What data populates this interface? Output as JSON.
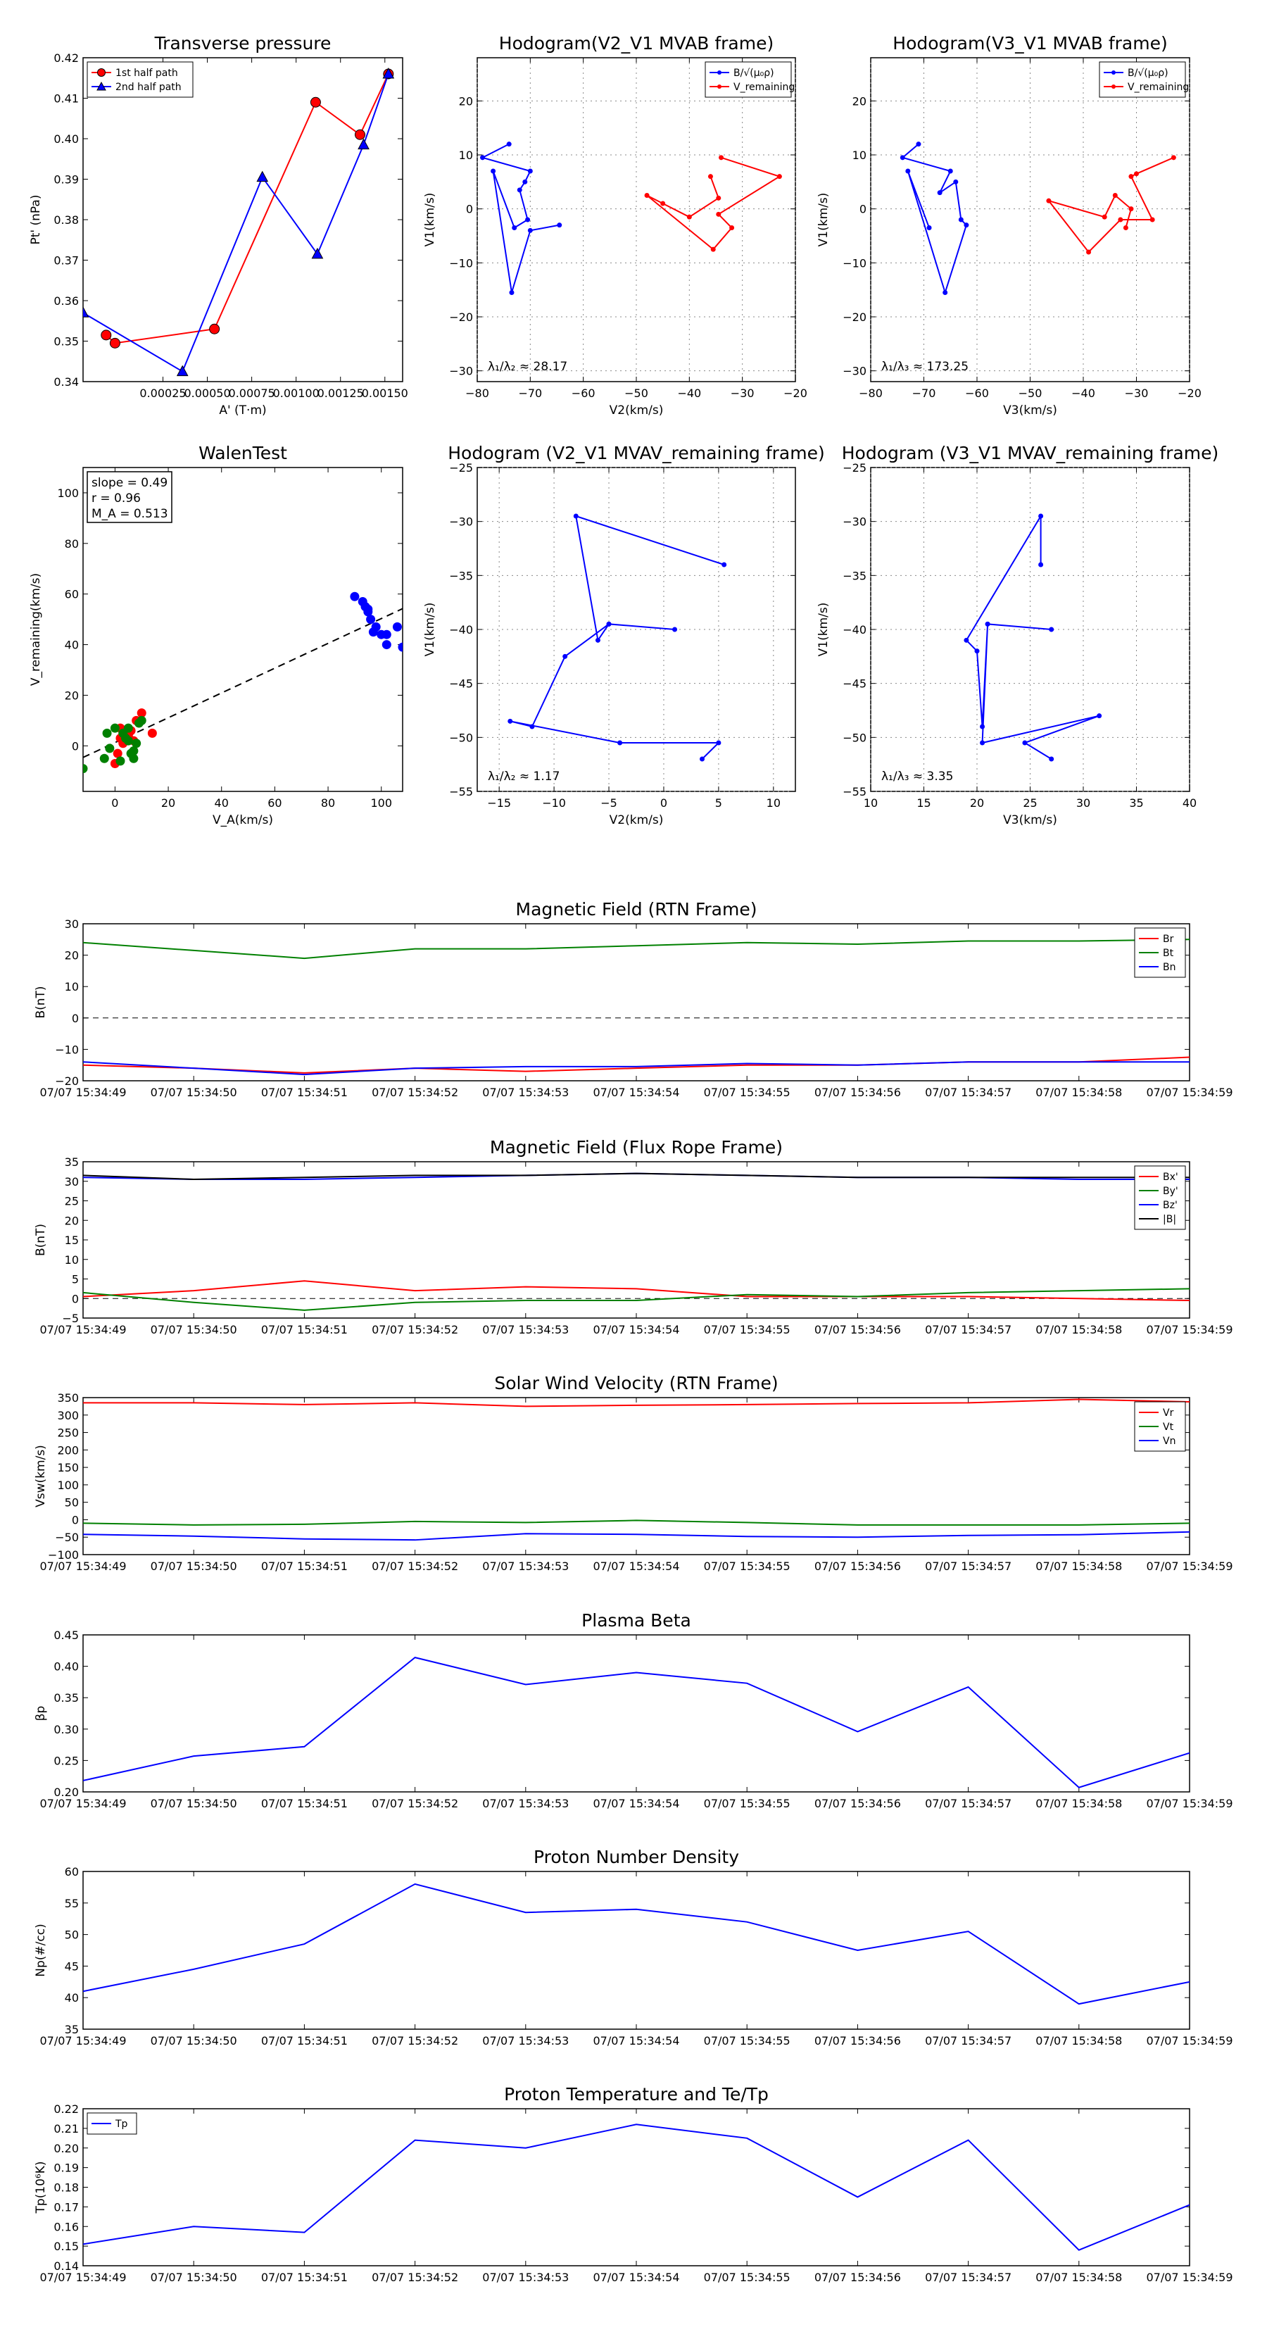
{
  "figure": {
    "colors": {
      "blue": "#0000ff",
      "red": "#ff0000",
      "green": "#008000",
      "black": "#000000"
    }
  },
  "time_labels": [
    "07/07 15:34:49",
    "07/07 15:34:50",
    "07/07 15:34:51",
    "07/07 15:34:52",
    "07/07 15:34:53",
    "07/07 15:34:54",
    "07/07 15:34:55",
    "07/07 15:34:56",
    "07/07 15:34:57",
    "07/07 15:34:58",
    "07/07 15:34:59"
  ],
  "chart_data": [
    {
      "id": "pt",
      "type": "line",
      "title": "Transverse pressure",
      "xlabel": "A' (T·m)",
      "ylabel": "Pt' (nPa)",
      "xlim": [
        -0.0002,
        0.0016
      ],
      "ylim": [
        0.34,
        0.42
      ],
      "xticks": [
        0.00025,
        0.0005,
        0.00075,
        0.001,
        0.00125,
        0.0015
      ],
      "xtick_labels": [
        "0.00025",
        "0.00050",
        "0.00075",
        "0.00100",
        "0.00125",
        "0.00150"
      ],
      "yticks": [
        0.34,
        0.35,
        0.36,
        0.37,
        0.38,
        0.39,
        0.4,
        0.41,
        0.42
      ],
      "ytick_labels": [
        "0.34",
        "0.35",
        "0.36",
        "0.37",
        "0.38",
        "0.39",
        "0.40",
        "0.41",
        "0.42"
      ],
      "legend": {
        "position": "top-left"
      },
      "series": [
        {
          "name": "1st half path",
          "color": "#ff0000",
          "marker": "circle",
          "x": [
            0.00152,
            0.00136,
            0.00111,
            0.00054,
            -2e-05,
            -7e-05
          ],
          "y": [
            0.416,
            0.401,
            0.409,
            0.353,
            0.3495,
            0.3515
          ]
        },
        {
          "name": "2nd half path",
          "color": "#0000ff",
          "marker": "triangle",
          "x": [
            -0.0002,
            0.00036,
            0.00081,
            0.00112,
            0.00138,
            0.00152
          ],
          "y": [
            0.357,
            0.3425,
            0.3905,
            0.3715,
            0.3985,
            0.416
          ]
        }
      ]
    },
    {
      "id": "h1",
      "type": "line",
      "title": "Hodogram(V2_V1 MVAB frame)",
      "xlabel": "V2(km/s)",
      "ylabel": "V1(km/s)",
      "xlim": [
        -80,
        -20
      ],
      "ylim": [
        -32,
        28
      ],
      "xticks": [
        -80,
        -70,
        -60,
        -50,
        -40,
        -30,
        -20
      ],
      "xtick_labels": [
        "−80",
        "−70",
        "−60",
        "−50",
        "−40",
        "−30",
        "−20"
      ],
      "yticks": [
        -30,
        -20,
        -10,
        0,
        10,
        20
      ],
      "ytick_labels": [
        "−30",
        "−20",
        "−10",
        "0",
        "10",
        "20"
      ],
      "annotation": "λ₁/λ₂ ≈ 28.17",
      "legend": {
        "position": "top-right"
      },
      "series": [
        {
          "name": "B/√(μ₀ρ)",
          "color": "#0000ff",
          "x": [
            -74,
            -79,
            -70,
            -71,
            -72,
            -70.5,
            -73,
            -77,
            -73.5,
            -70,
            -64.5
          ],
          "y": [
            12,
            9.5,
            7,
            5,
            3.5,
            -2,
            -3.5,
            7,
            -15.5,
            -4,
            -3
          ]
        },
        {
          "name": "V_remaining",
          "color": "#ff0000",
          "x": [
            -34,
            -23,
            -34.5,
            -32,
            -35.5,
            -48,
            -45,
            -40,
            -34.5,
            -36
          ],
          "y": [
            9.5,
            6,
            -1,
            -3.5,
            -7.5,
            2.5,
            1,
            -1.5,
            2,
            6
          ]
        }
      ]
    },
    {
      "id": "h2",
      "type": "line",
      "title": "Hodogram(V3_V1 MVAB frame)",
      "xlabel": "V3(km/s)",
      "ylabel": "V1(km/s)",
      "xlim": [
        -80,
        -20
      ],
      "ylim": [
        -32,
        28
      ],
      "xticks": [
        -80,
        -70,
        -60,
        -50,
        -40,
        -30,
        -20
      ],
      "xtick_labels": [
        "−80",
        "−70",
        "−60",
        "−50",
        "−40",
        "−30",
        "−20"
      ],
      "yticks": [
        -30,
        -20,
        -10,
        0,
        10,
        20
      ],
      "ytick_labels": [
        "−30",
        "−20",
        "−10",
        "0",
        "10",
        "20"
      ],
      "annotation": "λ₁/λ₃ ≈ 173.25",
      "legend": {
        "position": "top-right"
      },
      "series": [
        {
          "name": "B/√(μ₀ρ)",
          "color": "#0000ff",
          "x": [
            -71,
            -74,
            -65,
            -67,
            -64,
            -63,
            -62,
            -66,
            -73,
            -69
          ],
          "y": [
            12,
            9.5,
            7,
            3,
            5,
            -2,
            -3,
            -15.5,
            7,
            -3.5
          ]
        },
        {
          "name": "V_remaining",
          "color": "#ff0000",
          "x": [
            -23,
            -30,
            -31,
            -27,
            -33,
            -39,
            -46.5,
            -36,
            -34,
            -31,
            -32
          ],
          "y": [
            9.5,
            6.5,
            6,
            -2,
            -2,
            -8,
            1.5,
            -1.5,
            2.5,
            0,
            -3.5
          ]
        }
      ]
    },
    {
      "id": "walen",
      "type": "scatter",
      "title": "WalenTest",
      "xlabel": "V_A(km/s)",
      "ylabel": "V_remaining(km/s)",
      "xlim": [
        -12,
        108
      ],
      "ylim": [
        -18,
        110
      ],
      "xticks": [
        0,
        20,
        40,
        60,
        80,
        100
      ],
      "xtick_labels": [
        "0",
        "20",
        "40",
        "60",
        "80",
        "100"
      ],
      "yticks": [
        0,
        20,
        40,
        60,
        80,
        100
      ],
      "ytick_labels": [
        "0",
        "20",
        "40",
        "60",
        "80",
        "100"
      ],
      "stats": [
        "slope = 0.49",
        "r = 0.96",
        "M_A = 0.513"
      ],
      "fit_line": {
        "slope": 0.49,
        "intercept": 1.3
      },
      "series": [
        {
          "name": "red",
          "color": "#ff0000",
          "x": [
            10,
            8,
            14,
            6,
            4,
            2,
            0,
            3,
            5,
            7,
            2,
            3,
            1
          ],
          "y": [
            13,
            10,
            5,
            6,
            2,
            7,
            -7,
            5,
            4,
            2,
            3,
            1,
            -3
          ]
        },
        {
          "name": "green",
          "color": "#008000",
          "x": [
            -12,
            -4,
            -2,
            5,
            8,
            10,
            3,
            7,
            6,
            4,
            2,
            -3,
            0,
            5,
            9,
            7
          ],
          "y": [
            -9,
            -5,
            -1,
            7,
            1,
            10,
            5,
            -5,
            -3,
            3,
            -6,
            5,
            7,
            2,
            9,
            -2
          ]
        },
        {
          "name": "blue",
          "color": "#0000ff",
          "x": [
            90,
            93,
            94,
            95,
            96,
            95,
            98,
            102,
            102,
            106,
            108,
            97,
            100
          ],
          "y": [
            59,
            57,
            55,
            54,
            50,
            53,
            47,
            44,
            40,
            47,
            39,
            45,
            44
          ]
        }
      ]
    },
    {
      "id": "h3",
      "type": "line",
      "title": "Hodogram (V2_V1 MVAV_remaining frame)",
      "xlabel": "V2(km/s)",
      "ylabel": "V1(km/s)",
      "xlim": [
        -17,
        12
      ],
      "ylim": [
        -55,
        -25
      ],
      "xticks": [
        -15,
        -10,
        -5,
        0,
        5,
        10
      ],
      "xtick_labels": [
        "−15",
        "−10",
        "−5",
        "0",
        "5",
        "10"
      ],
      "yticks": [
        -55,
        -50,
        -45,
        -40,
        -35,
        -30,
        -25
      ],
      "ytick_labels": [
        "−55",
        "−50",
        "−45",
        "−40",
        "−35",
        "−30",
        "−25"
      ],
      "annotation": "λ₁/λ₂ ≈ 1.17",
      "series": [
        {
          "name": "path",
          "color": "#0000ff",
          "x": [
            5.5,
            -8,
            -6,
            -5,
            1,
            -5,
            -9,
            -12,
            -14,
            -4,
            5,
            3.5
          ],
          "y": [
            -34,
            -29.5,
            -41,
            -39.5,
            -40,
            -39.5,
            -42.5,
            -49,
            -48.5,
            -50.5,
            -50.5,
            -52
          ]
        }
      ]
    },
    {
      "id": "h4",
      "type": "line",
      "title": "Hodogram (V3_V1 MVAV_remaining frame)",
      "xlabel": "V3(km/s)",
      "ylabel": "V1(km/s)",
      "xlim": [
        10,
        40
      ],
      "ylim": [
        -55,
        -25
      ],
      "xticks": [
        10,
        15,
        20,
        25,
        30,
        35,
        40
      ],
      "xtick_labels": [
        "10",
        "15",
        "20",
        "25",
        "30",
        "35",
        "40"
      ],
      "yticks": [
        -55,
        -50,
        -45,
        -40,
        -35,
        -30,
        -25
      ],
      "ytick_labels": [
        "−55",
        "−50",
        "−45",
        "−40",
        "−35",
        "−30",
        "−25"
      ],
      "annotation": "λ₁/λ₃ ≈ 3.35",
      "series": [
        {
          "name": "path",
          "color": "#0000ff",
          "x": [
            26,
            26,
            19,
            20,
            20.5,
            21,
            27,
            21,
            20.5,
            31.5,
            24.5,
            27
          ],
          "y": [
            -34,
            -29.5,
            -41,
            -42,
            -49,
            -39.5,
            -40,
            -39.5,
            -50.5,
            -48,
            -50.5,
            -52
          ]
        }
      ]
    },
    {
      "id": "brtn",
      "type": "line",
      "title": "Magnetic Field (RTN Frame)",
      "xlabel": "",
      "ylabel": "B(nT)",
      "ylim": [
        -20,
        30
      ],
      "yticks": [
        -20,
        -10,
        0,
        10,
        20,
        30
      ],
      "ytick_labels": [
        "−20",
        "−10",
        "0",
        "10",
        "20",
        "30"
      ],
      "zero_line": true,
      "legend": {
        "position": "top-right"
      },
      "series": [
        {
          "name": "Br",
          "color": "#ff0000",
          "values": [
            -15,
            -16,
            -17.5,
            -16,
            -17,
            -16,
            -15,
            -15,
            -14,
            -14,
            -12.5
          ]
        },
        {
          "name": "Bt",
          "color": "#008000",
          "values": [
            24,
            21.5,
            19,
            22,
            22,
            23,
            24,
            23.5,
            24.5,
            24.5,
            25
          ]
        },
        {
          "name": "Bn",
          "color": "#0000ff",
          "values": [
            -14,
            -16,
            -18,
            -16,
            -15.5,
            -15.5,
            -14.5,
            -15,
            -14,
            -14,
            -14
          ]
        }
      ]
    },
    {
      "id": "bfr",
      "type": "line",
      "title": "Magnetic Field (Flux Rope Frame)",
      "xlabel": "",
      "ylabel": "B(nT)",
      "ylim": [
        -5,
        35
      ],
      "yticks": [
        -5,
        0,
        5,
        10,
        15,
        20,
        25,
        30,
        35
      ],
      "ytick_labels": [
        "−5",
        "0",
        "5",
        "10",
        "15",
        "20",
        "25",
        "30",
        "35"
      ],
      "zero_line": true,
      "legend": {
        "position": "top-right"
      },
      "series": [
        {
          "name": "Bx'",
          "color": "#ff0000",
          "values": [
            0.5,
            2,
            4.5,
            2,
            3,
            2.5,
            0.5,
            0.5,
            0.5,
            0,
            -0.5
          ]
        },
        {
          "name": "By'",
          "color": "#008000",
          "values": [
            1.5,
            -1,
            -3,
            -1,
            -0.5,
            -0.5,
            1,
            0.5,
            1.5,
            2,
            2.5
          ]
        },
        {
          "name": "Bz'",
          "color": "#0000ff",
          "values": [
            31,
            30.5,
            30.5,
            31,
            31.5,
            32,
            31.5,
            31,
            31,
            30.5,
            30.5
          ]
        },
        {
          "name": "|B|",
          "color": "#000000",
          "values": [
            31.5,
            30.5,
            31,
            31.5,
            31.5,
            32,
            31.5,
            31,
            31,
            31,
            31
          ]
        }
      ]
    },
    {
      "id": "vsw",
      "type": "line",
      "title": "Solar Wind Velocity (RTN Frame)",
      "xlabel": "",
      "ylabel": "Vsw(km/s)",
      "ylim": [
        -100,
        350
      ],
      "yticks": [
        -100,
        -50,
        0,
        50,
        100,
        150,
        200,
        250,
        300,
        350
      ],
      "ytick_labels": [
        "−100",
        "−50",
        "0",
        "50",
        "100",
        "150",
        "200",
        "250",
        "300",
        "350"
      ],
      "legend": {
        "position": "top-right"
      },
      "series": [
        {
          "name": "Vr",
          "color": "#ff0000",
          "values": [
            335,
            335,
            330,
            335,
            325,
            328,
            330,
            333,
            335,
            345,
            338
          ]
        },
        {
          "name": "Vt",
          "color": "#008000",
          "values": [
            -10,
            -15,
            -13,
            -5,
            -8,
            -2,
            -8,
            -15,
            -15,
            -15,
            -10
          ]
        },
        {
          "name": "Vn",
          "color": "#0000ff",
          "values": [
            -42,
            -47,
            -55,
            -58,
            -40,
            -42,
            -48,
            -50,
            -45,
            -43,
            -35
          ]
        }
      ]
    },
    {
      "id": "beta",
      "type": "line",
      "title": "Plasma Beta",
      "xlabel": "",
      "ylabel": "βp",
      "ylim": [
        0.2,
        0.45
      ],
      "yticks": [
        0.2,
        0.25,
        0.3,
        0.35,
        0.4,
        0.45
      ],
      "ytick_labels": [
        "0.20",
        "0.25",
        "0.30",
        "0.35",
        "0.40",
        "0.45"
      ],
      "series": [
        {
          "name": "beta",
          "color": "#0000ff",
          "values": [
            0.218,
            0.257,
            0.272,
            0.414,
            0.371,
            0.39,
            0.373,
            0.296,
            0.367,
            0.207,
            0.262
          ]
        }
      ]
    },
    {
      "id": "np",
      "type": "line",
      "title": "Proton Number Density",
      "xlabel": "",
      "ylabel": "Np(#/cc)",
      "ylim": [
        35,
        60
      ],
      "yticks": [
        35,
        40,
        45,
        50,
        55,
        60
      ],
      "ytick_labels": [
        "35",
        "40",
        "45",
        "50",
        "55",
        "60"
      ],
      "series": [
        {
          "name": "Np",
          "color": "#0000ff",
          "values": [
            41,
            44.5,
            48.5,
            58,
            53.5,
            54,
            52,
            47.5,
            50.5,
            39,
            42.5
          ]
        }
      ]
    },
    {
      "id": "tp",
      "type": "line",
      "title": "Proton Temperature and Te/Tp",
      "xlabel": "",
      "ylabel": "Tp(10⁶K)",
      "ylim": [
        0.14,
        0.22
      ],
      "yticks": [
        0.14,
        0.15,
        0.16,
        0.17,
        0.18,
        0.19,
        0.2,
        0.21,
        0.22
      ],
      "ytick_labels": [
        "0.14",
        "0.15",
        "0.16",
        "0.17",
        "0.18",
        "0.19",
        "0.20",
        "0.21",
        "0.22"
      ],
      "legend": {
        "position": "top-left"
      },
      "series": [
        {
          "name": "Tp",
          "color": "#0000ff",
          "values": [
            0.151,
            0.16,
            0.157,
            0.204,
            0.2,
            0.212,
            0.205,
            0.175,
            0.204,
            0.148,
            0.171
          ]
        }
      ]
    }
  ]
}
